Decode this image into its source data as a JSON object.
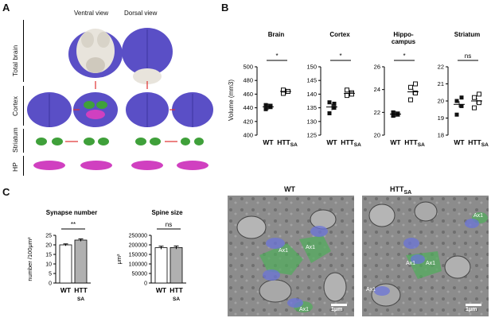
{
  "panel_a": {
    "letter": "A",
    "view_labels": [
      "Ventral view",
      "Dorsal view"
    ],
    "row_labels": [
      "Total brain",
      "Cortex",
      "Striatum",
      "HP"
    ]
  },
  "panel_b": {
    "letter": "B",
    "ylabel": "Volume (mm3)",
    "groups": [
      "WT",
      "HTT",
      "SA"
    ]
  },
  "panel_c": {
    "letter": "C",
    "em_titles": {
      "wt": "WT",
      "htt": "HTT",
      "htt_sub": "SA"
    },
    "scale_bar": "1μm",
    "axon_label": "Ax1"
  },
  "chart_data": [
    {
      "type": "scatter",
      "title": "Brain",
      "ylabel": "Volume (mm3)",
      "ylim": [
        400,
        500
      ],
      "yticks": [
        "400",
        "420",
        "440",
        "460",
        "480",
        "500"
      ],
      "categories": [
        "WT",
        "HTTSA"
      ],
      "series": [
        {
          "name": "WT",
          "values": [
            438,
            441,
            444,
            443
          ],
          "mean": 441.5
        },
        {
          "name": "HTTSA",
          "values": [
            461,
            464,
            466,
            464
          ],
          "mean": 464
        }
      ],
      "significance": "*"
    },
    {
      "type": "scatter",
      "title": "Cortex",
      "ylim": [
        125,
        150
      ],
      "yticks": [
        "125",
        "130",
        "135",
        "140",
        "145",
        "150"
      ],
      "categories": [
        "WT",
        "HTTSA"
      ],
      "series": [
        {
          "name": "WT",
          "values": [
            133,
            135,
            137,
            136.5
          ],
          "mean": 135.3
        },
        {
          "name": "HTTSA",
          "values": [
            139.5,
            140.5,
            141.5,
            140
          ],
          "mean": 140.3
        }
      ],
      "significance": "*"
    },
    {
      "type": "scatter",
      "title": "Hippo-campus",
      "ylim": [
        20,
        26
      ],
      "yticks": [
        "20",
        "22",
        "24",
        "26"
      ],
      "categories": [
        "WT",
        "HTTSA"
      ],
      "series": [
        {
          "name": "WT",
          "values": [
            21.7,
            21.9,
            22.0,
            21.8
          ],
          "mean": 21.85
        },
        {
          "name": "HTTSA",
          "values": [
            23.1,
            23.7,
            24.2,
            24.5
          ],
          "mean": 23.8
        }
      ],
      "significance": "*"
    },
    {
      "type": "scatter",
      "title": "Striatum",
      "ylim": [
        18,
        22
      ],
      "yticks": [
        "18",
        "19",
        "20",
        "21",
        "22"
      ],
      "categories": [
        "WT",
        "HTTSA"
      ],
      "series": [
        {
          "name": "WT",
          "values": [
            19.2,
            19.7,
            20.0,
            20.2
          ],
          "mean": 19.8
        },
        {
          "name": "HTTSA",
          "values": [
            19.6,
            19.9,
            20.2,
            20.4
          ],
          "mean": 20.0
        }
      ],
      "significance": "ns"
    },
    {
      "type": "bar",
      "title": "Synapse number",
      "ylabel": "number /100μm²",
      "ylim": [
        0,
        25
      ],
      "yticks": [
        "0",
        "5",
        "10",
        "15",
        "20",
        "25"
      ],
      "categories": [
        "WT",
        "HTT"
      ],
      "category_subscripts": [
        "",
        "SA"
      ],
      "values": [
        20,
        22.5
      ],
      "errors": [
        0.5,
        0.6
      ],
      "colors": [
        "#ffffff",
        "#b0b0b0"
      ],
      "significance": "**"
    },
    {
      "type": "bar",
      "title": "Spine size",
      "ylabel": "μm²",
      "ylim": [
        0,
        250000
      ],
      "yticks": [
        "0",
        "50000",
        "100000",
        "150000",
        "200000",
        "250000"
      ],
      "categories": [
        "WT",
        "HTT"
      ],
      "category_subscripts": [
        "",
        "SA"
      ],
      "values": [
        185000,
        186000
      ],
      "errors": [
        8000,
        8000
      ],
      "colors": [
        "#ffffff",
        "#b0b0b0"
      ],
      "significance": "ns"
    }
  ]
}
